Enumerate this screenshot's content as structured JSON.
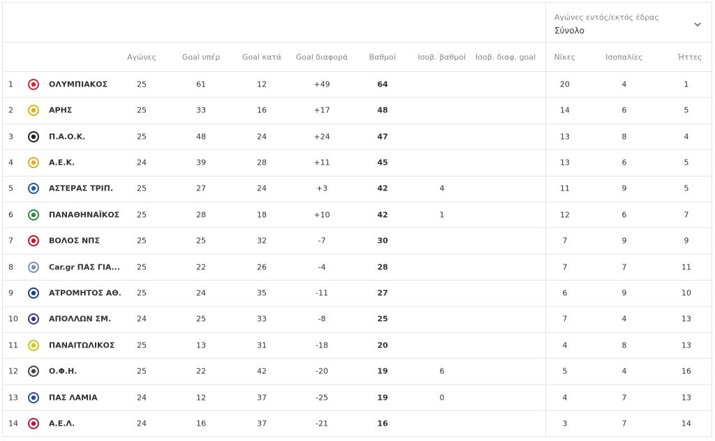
{
  "filter": {
    "label": "Αγώνες εντός/εκτός έδρας",
    "value": "Σύνολο"
  },
  "columns": {
    "played": "Αγώνες",
    "gf": "Goal υπέρ",
    "ga": "Goal κατά",
    "gd": "Goal διαφορά",
    "pts": "Βαθμοί",
    "tie_pts": "Ισοβ. βαθμοί",
    "tie_gd": "Ισοβ. διαφ. goal",
    "wins": "Νίκες",
    "draws": "Ισοπαλίες",
    "losses": "Ήττες"
  },
  "rows": [
    {
      "pos": 1,
      "team": "ΟΛΥΜΠΙΑΚΟΣ",
      "played": 25,
      "gf": 61,
      "ga": 12,
      "gd": "+49",
      "pts": 64,
      "wins": 20,
      "draws": 4,
      "losses": 1
    },
    {
      "pos": 2,
      "team": "ΑΡΗΣ",
      "played": 25,
      "gf": 33,
      "ga": 16,
      "gd": "+17",
      "pts": 48,
      "wins": 14,
      "draws": 6,
      "losses": 5
    },
    {
      "pos": 3,
      "team": "Π.Α.Ο.Κ.",
      "played": 25,
      "gf": 48,
      "ga": 24,
      "gd": "+24",
      "pts": 47,
      "wins": 13,
      "draws": 8,
      "losses": 4
    },
    {
      "pos": 4,
      "team": "Α.Ε.Κ.",
      "played": 24,
      "gf": 39,
      "ga": 28,
      "gd": "+11",
      "pts": 45,
      "wins": 13,
      "draws": 6,
      "losses": 5
    },
    {
      "pos": 5,
      "team": "ΑΣΤΕΡΑΣ ΤΡΙΠ.",
      "played": 25,
      "gf": 27,
      "ga": 24,
      "gd": "+3",
      "pts": 42,
      "tie_pts": 4,
      "wins": 11,
      "draws": 9,
      "losses": 5
    },
    {
      "pos": 6,
      "team": "ΠΑΝΑΘΗΝΑΪΚΟΣ",
      "played": 25,
      "gf": 28,
      "ga": 18,
      "gd": "+10",
      "pts": 42,
      "tie_pts": 1,
      "wins": 12,
      "draws": 6,
      "losses": 7
    },
    {
      "pos": 7,
      "team": "ΒΟΛΟΣ ΝΠΣ",
      "played": 25,
      "gf": 25,
      "ga": 32,
      "gd": "-7",
      "pts": 30,
      "wins": 7,
      "draws": 9,
      "losses": 9
    },
    {
      "pos": 8,
      "team": "Car.gr ΠΑΣ ΓΙΑ...",
      "played": 25,
      "gf": 22,
      "ga": 26,
      "gd": "-4",
      "pts": 28,
      "wins": 7,
      "draws": 7,
      "losses": 11
    },
    {
      "pos": 9,
      "team": "ΑΤΡΟΜΗΤΟΣ ΑΘ.",
      "played": 25,
      "gf": 24,
      "ga": 35,
      "gd": "-11",
      "pts": 27,
      "wins": 6,
      "draws": 9,
      "losses": 10
    },
    {
      "pos": 10,
      "team": "ΑΠΟΛΛΩΝ ΣΜ.",
      "played": 24,
      "gf": 25,
      "ga": 33,
      "gd": "-8",
      "pts": 25,
      "wins": 7,
      "draws": 4,
      "losses": 13
    },
    {
      "pos": 11,
      "team": "ΠΑΝΑΙΤΩΛΙΚΟΣ",
      "played": 25,
      "gf": 13,
      "ga": 31,
      "gd": "-18",
      "pts": 20,
      "wins": 4,
      "draws": 8,
      "losses": 13
    },
    {
      "pos": 12,
      "team": "Ο.Φ.Η.",
      "played": 25,
      "gf": 22,
      "ga": 42,
      "gd": "-20",
      "pts": 19,
      "tie_pts": 6,
      "wins": 5,
      "draws": 4,
      "losses": 16
    },
    {
      "pos": 13,
      "team": "ΠΑΣ ΛΑΜΙΑ",
      "played": 24,
      "gf": 12,
      "ga": 37,
      "gd": "-25",
      "pts": 19,
      "tie_pts": 0,
      "wins": 4,
      "draws": 7,
      "losses": 13
    },
    {
      "pos": 14,
      "team": "Α.Ε.Λ.",
      "played": 24,
      "gf": 16,
      "ga": 37,
      "gd": "-21",
      "pts": 16,
      "wins": 3,
      "draws": 7,
      "losses": 14
    }
  ]
}
